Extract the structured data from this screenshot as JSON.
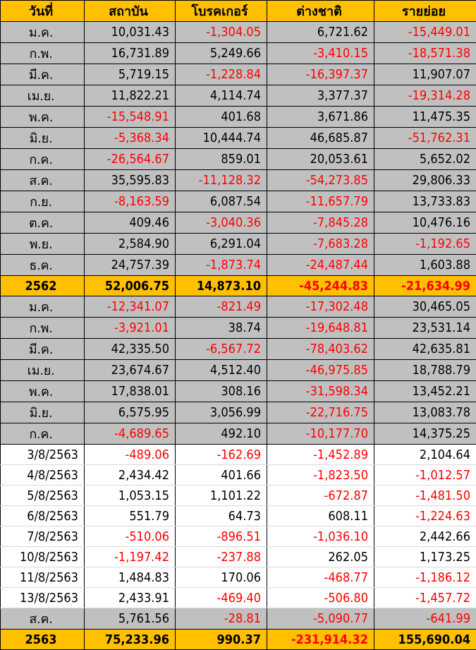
{
  "headers": [
    "วันที่",
    "สถาบัน",
    "โบรคเกอร์",
    "ต่างชาติ",
    "รายย่อย"
  ],
  "colors": {
    "header": "#ffc000",
    "month_row": "#c0c0c0",
    "negative": "#ff0000"
  },
  "rows": [
    {
      "type": "grey",
      "cells": [
        "ม.ค.",
        "10,031.43",
        "-1,304.05",
        "6,721.62",
        "-15,449.01"
      ]
    },
    {
      "type": "grey",
      "cells": [
        "ก.พ.",
        "16,731.89",
        "5,249.66",
        "-3,410.15",
        "-18,571.38"
      ]
    },
    {
      "type": "grey",
      "cells": [
        "มี.ค.",
        "5,719.15",
        "-1,228.84",
        "-16,397.37",
        "11,907.07"
      ]
    },
    {
      "type": "grey",
      "cells": [
        "เม.ย.",
        "11,822.21",
        "4,114.74",
        "3,377.37",
        "-19,314.28"
      ]
    },
    {
      "type": "grey",
      "cells": [
        "พ.ค.",
        "-15,548.91",
        "401.68",
        "3,671.86",
        "11,475.35"
      ]
    },
    {
      "type": "grey",
      "cells": [
        "มิ.ย.",
        "-5,368.34",
        "10,444.74",
        "46,685.87",
        "-51,762.31"
      ]
    },
    {
      "type": "grey",
      "cells": [
        "ก.ค.",
        "-26,564.67",
        "859.01",
        "20,053.61",
        "5,652.02"
      ]
    },
    {
      "type": "grey",
      "cells": [
        "ส.ค.",
        "35,595.83",
        "-11,128.32",
        "-54,273.85",
        "29,806.33"
      ]
    },
    {
      "type": "grey",
      "cells": [
        "ก.ย.",
        "-8,163.59",
        "6,087.54",
        "-11,657.79",
        "13,733.83"
      ]
    },
    {
      "type": "grey",
      "cells": [
        "ต.ค.",
        "409.46",
        "-3,040.36",
        "-7,845.28",
        "10,476.16"
      ]
    },
    {
      "type": "grey",
      "cells": [
        "พ.ย.",
        "2,584.90",
        "6,291.04",
        "-7,683.28",
        "-1,192.65"
      ]
    },
    {
      "type": "grey",
      "cells": [
        "ธ.ค.",
        "24,757.39",
        "-1,873.74",
        "-24,487.44",
        "1,603.88"
      ]
    },
    {
      "type": "total",
      "cells": [
        "2562",
        "52,006.75",
        "14,873.10",
        "-45,244.83",
        "-21,634.99"
      ]
    },
    {
      "type": "grey",
      "cells": [
        "ม.ค.",
        "-12,341.07",
        "-821.49",
        "-17,302.48",
        "30,465.05"
      ]
    },
    {
      "type": "grey",
      "cells": [
        "ก.พ.",
        "-3,921.01",
        "38.74",
        "-19,648.81",
        "23,531.14"
      ]
    },
    {
      "type": "grey",
      "cells": [
        "มี.ค.",
        "42,335.50",
        "-6,567.72",
        "-78,403.62",
        "42,635.81"
      ]
    },
    {
      "type": "grey",
      "cells": [
        "เม.ย.",
        "23,674.67",
        "4,512.40",
        "-46,975.85",
        "18,788.79"
      ]
    },
    {
      "type": "grey",
      "cells": [
        "พ.ค.",
        "17,838.01",
        "308.16",
        "-31,598.34",
        "13,452.21"
      ]
    },
    {
      "type": "grey",
      "cells": [
        "มิ.ย.",
        "6,575.95",
        "3,056.99",
        "-22,716.75",
        "13,083.78"
      ]
    },
    {
      "type": "grey",
      "cells": [
        "ก.ค.",
        "-4,689.65",
        "492.10",
        "-10,177.70",
        "14,375.25"
      ]
    },
    {
      "type": "white",
      "cells": [
        "3/8/2563",
        "-489.06",
        "-162.69",
        "-1,452.89",
        "2,104.64"
      ]
    },
    {
      "type": "white",
      "cells": [
        "4/8/2563",
        "2,434.42",
        "401.66",
        "-1,823.50",
        "-1,012.57"
      ]
    },
    {
      "type": "white",
      "cells": [
        "5/8/2563",
        "1,053.15",
        "1,101.22",
        "-672.87",
        "-1,481.50"
      ]
    },
    {
      "type": "white",
      "cells": [
        "6/8/2563",
        "551.79",
        "64.73",
        "608.11",
        "-1,224.63"
      ]
    },
    {
      "type": "white",
      "cells": [
        "7/8/2563",
        "-510.06",
        "-896.51",
        "-1,036.10",
        "2,442.66"
      ]
    },
    {
      "type": "white",
      "cells": [
        "10/8/2563",
        "-1,197.42",
        "-237.88",
        "262.05",
        "1,173.25"
      ]
    },
    {
      "type": "white",
      "cells": [
        "11/8/2563",
        "1,484.83",
        "170.06",
        "-468.77",
        "-1,186.12"
      ]
    },
    {
      "type": "white",
      "cells": [
        "13/8/2563",
        "2,433.91",
        "-469.40",
        "-506.80",
        "-1,457.72"
      ]
    },
    {
      "type": "grey",
      "cells": [
        "ส.ค.",
        "5,761.56",
        "-28.81",
        "-5,090.77",
        "-641.99"
      ]
    },
    {
      "type": "total",
      "cells": [
        "2563",
        "75,233.96",
        "990.37",
        "-231,914.32",
        "155,690.04"
      ]
    }
  ]
}
